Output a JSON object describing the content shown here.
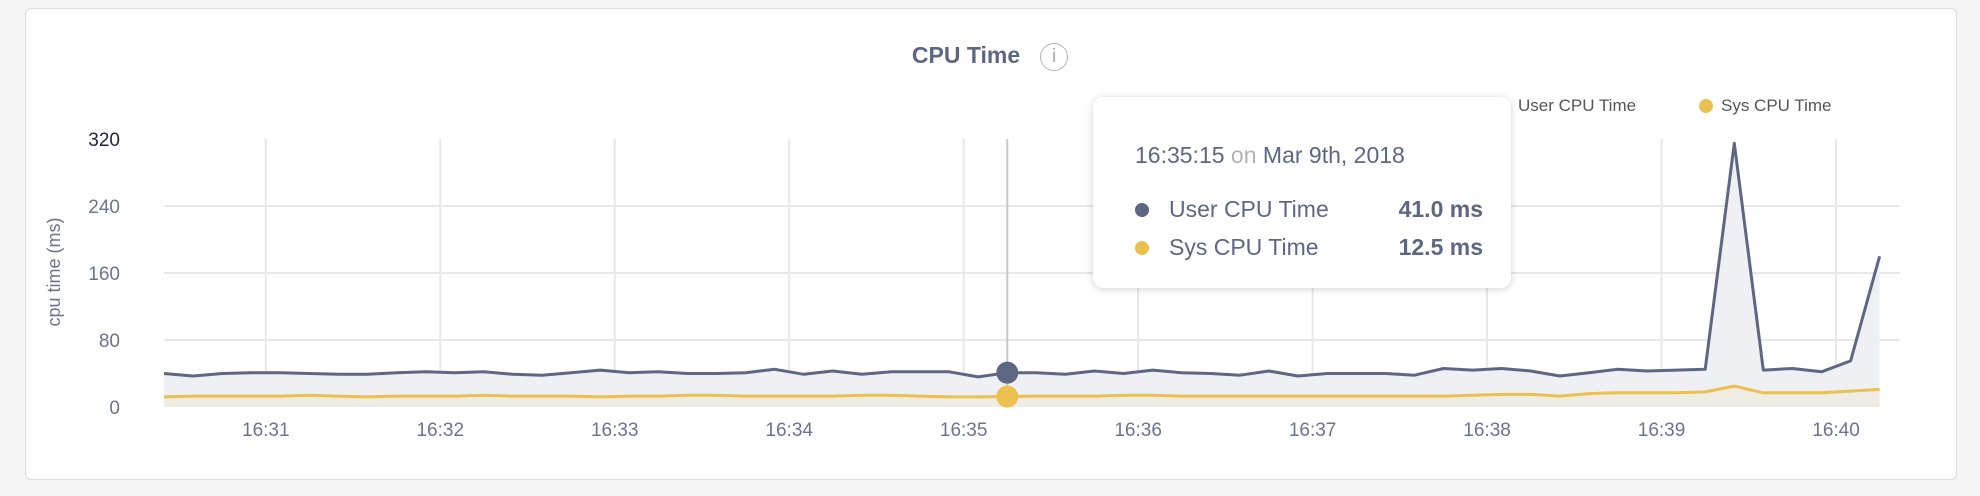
{
  "panel": {
    "title": "CPU Time",
    "info_icon": "info-circle-icon"
  },
  "colors": {
    "user": "#5d6784",
    "sys": "#ecc04e",
    "user_fill": "#eef0f3",
    "sys_fill": "#efece3",
    "grid": "#e8e8e8"
  },
  "tooltip": {
    "time": "16:35:15",
    "on": "on",
    "date": "Mar 9th, 2018",
    "rows": [
      {
        "label": "User CPU Time",
        "value": "41.0 ms"
      },
      {
        "label": "Sys CPU Time",
        "value": "12.5 ms"
      }
    ]
  },
  "chart_data": {
    "type": "area",
    "title": "CPU Time",
    "xlabel": "",
    "ylabel": "cpu time (ms)",
    "ylim": [
      0,
      320
    ],
    "yticks": [
      "0",
      "80",
      "160",
      "240",
      "320"
    ],
    "xticks": [
      "16:31",
      "16:32",
      "16:33",
      "16:34",
      "16:35",
      "16:36",
      "16:37",
      "16:38",
      "16:39",
      "16:40"
    ],
    "x_start": "16:30:25",
    "x_step_seconds": 10,
    "grid": true,
    "legend": "top-right",
    "hover_time": "16:35:15",
    "series": [
      {
        "name": "User CPU Time",
        "values": [
          40,
          37,
          40,
          41,
          41,
          40,
          39,
          39,
          41,
          42,
          41,
          42,
          39,
          38,
          41,
          44,
          41,
          42,
          40,
          40,
          41,
          45,
          39,
          43,
          39,
          42,
          42,
          42,
          36,
          41,
          41,
          39,
          43,
          40,
          44,
          41,
          40,
          38,
          43,
          37,
          40,
          40,
          40,
          38,
          46,
          44,
          46,
          43,
          37,
          41,
          45,
          43,
          44,
          45,
          315,
          44,
          46,
          42,
          55,
          180
        ]
      },
      {
        "name": "Sys CPU Time",
        "values": [
          12,
          13,
          13,
          13,
          13,
          14,
          13,
          12,
          13,
          13,
          13,
          14,
          13,
          13,
          13,
          12,
          13,
          13,
          14,
          14,
          13,
          13,
          13,
          13,
          14,
          14,
          13,
          12,
          12,
          12.5,
          13,
          13,
          13,
          14,
          14,
          13,
          13,
          13,
          13,
          13,
          13,
          13,
          13,
          13,
          13,
          14,
          15,
          15,
          13,
          16,
          17,
          17,
          17,
          18,
          25,
          17,
          17,
          17,
          19,
          21
        ]
      }
    ]
  }
}
